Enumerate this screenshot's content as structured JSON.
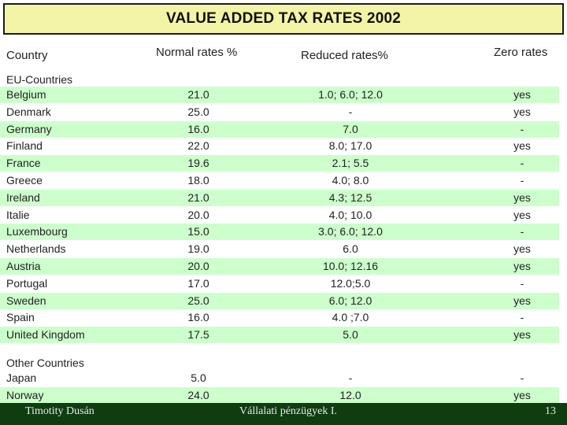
{
  "title": "VALUE ADDED TAX RATES 2002",
  "headers": {
    "country": "Country",
    "normal": "Normal rates %",
    "reduced": "Reduced rates%",
    "zero": "Zero rates"
  },
  "sections": {
    "eu": "EU-Countries",
    "other": "Other Countries"
  },
  "eu_rows": [
    {
      "country": "Belgium",
      "normal": "21.0",
      "reduced": "1.0; 6.0; 12.0",
      "zero": "yes"
    },
    {
      "country": "Denmark",
      "normal": "25.0",
      "reduced": "-",
      "zero": "yes"
    },
    {
      "country": "Germany",
      "normal": "16.0",
      "reduced": "7.0",
      "zero": "-"
    },
    {
      "country": "Finland",
      "normal": "22.0",
      "reduced": "8.0; 17.0",
      "zero": "yes"
    },
    {
      "country": "France",
      "normal": "19.6",
      "reduced": "2.1; 5.5",
      "zero": "-"
    },
    {
      "country": "Greece",
      "normal": "18.0",
      "reduced": "4.0; 8.0",
      "zero": "-"
    },
    {
      "country": "Ireland",
      "normal": "21.0",
      "reduced": "4.3; 12.5",
      "zero": "yes"
    },
    {
      "country": "Italie",
      "normal": "20.0",
      "reduced": "4.0; 10.0",
      "zero": "yes"
    },
    {
      "country": "Luxembourg",
      "normal": "15.0",
      "reduced": "3.0; 6.0; 12.0",
      "zero": "-"
    },
    {
      "country": "Netherlands",
      "normal": "19.0",
      "reduced": "6.0",
      "zero": "yes"
    },
    {
      "country": "Austria",
      "normal": "20.0",
      "reduced": "10.0; 12.16",
      "zero": "yes"
    },
    {
      "country": "Portugal",
      "normal": "17.0",
      "reduced": "12.0;5.0",
      "zero": "-"
    },
    {
      "country": "Sweden",
      "normal": "25.0",
      "reduced": "6.0; 12.0",
      "zero": "yes"
    },
    {
      "country": "Spain",
      "normal": "16.0",
      "reduced": "4.0 ;7.0",
      "zero": "-"
    },
    {
      "country": "United Kingdom",
      "normal": "17.5",
      "reduced": "5.0",
      "zero": "yes"
    }
  ],
  "other_rows": [
    {
      "country": "Japan",
      "normal": "5.0",
      "reduced": "-",
      "zero": "-"
    },
    {
      "country": "Norway",
      "normal": "24.0",
      "reduced": "12.0",
      "zero": "yes"
    }
  ],
  "footer": {
    "author": "Timotity Dusán",
    "course": "Vállalati pénzügyek I.",
    "page": "13"
  },
  "colors": {
    "title_bg": "#f4f4a6",
    "row_shade": "#ccffcc",
    "footer_bg": "#0f3d10"
  }
}
